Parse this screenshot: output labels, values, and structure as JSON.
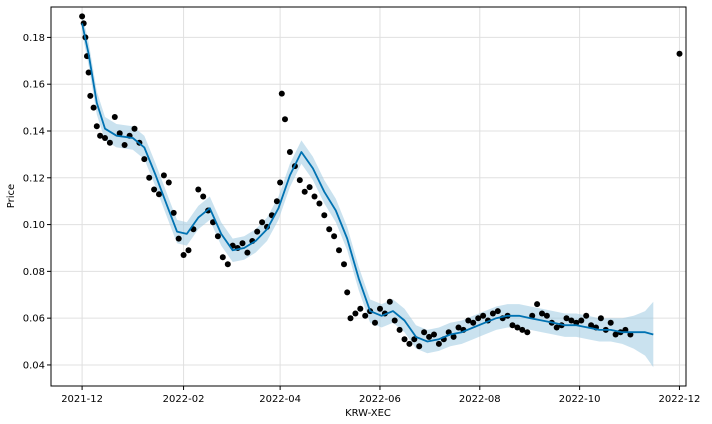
{
  "chart_data": {
    "type": "scatter",
    "title": "",
    "xlabel": "KRW-XEC",
    "ylabel": "Price",
    "xlim": [
      "2021-11-12",
      "2022-12-05"
    ],
    "ylim": [
      0.031,
      0.193
    ],
    "grid": true,
    "x_ticks": [
      "2021-12",
      "2022-02",
      "2022-04",
      "2022-06",
      "2022-08",
      "2022-10",
      "2022-12"
    ],
    "y_ticks": [
      "0.04",
      "0.06",
      "0.08",
      "0.10",
      "0.12",
      "0.14",
      "0.16",
      "0.18"
    ],
    "colors": {
      "points": "#000000",
      "forecast_line": "#0072B2",
      "band": "#9ecae1"
    },
    "series": [
      {
        "kind": "observed",
        "x": [
          "2021-12-01",
          "2021-12-02",
          "2021-12-03",
          "2021-12-04",
          "2021-12-05",
          "2021-12-06",
          "2021-12-08",
          "2021-12-10",
          "2021-12-12",
          "2021-12-15",
          "2021-12-18",
          "2021-12-21",
          "2021-12-24",
          "2021-12-27",
          "2021-12-30",
          "2022-01-02",
          "2022-01-05",
          "2022-01-08",
          "2022-01-11",
          "2022-01-14",
          "2022-01-17",
          "2022-01-20",
          "2022-01-23",
          "2022-01-26",
          "2022-01-29",
          "2022-02-01",
          "2022-02-04",
          "2022-02-07",
          "2022-02-10",
          "2022-02-13",
          "2022-02-16",
          "2022-02-19",
          "2022-02-22",
          "2022-02-25",
          "2022-02-28",
          "2022-03-03",
          "2022-03-06",
          "2022-03-09",
          "2022-03-12",
          "2022-03-15",
          "2022-03-18",
          "2022-03-21",
          "2022-03-24",
          "2022-03-27",
          "2022-03-30",
          "2022-04-01",
          "2022-04-02",
          "2022-04-04",
          "2022-04-07",
          "2022-04-10",
          "2022-04-13",
          "2022-04-16",
          "2022-04-19",
          "2022-04-22",
          "2022-04-25",
          "2022-04-28",
          "2022-05-01",
          "2022-05-04",
          "2022-05-07",
          "2022-05-10",
          "2022-05-12",
          "2022-05-14",
          "2022-05-17",
          "2022-05-20",
          "2022-05-23",
          "2022-05-26",
          "2022-05-29",
          "2022-06-01",
          "2022-06-04",
          "2022-06-07",
          "2022-06-10",
          "2022-06-13",
          "2022-06-16",
          "2022-06-19",
          "2022-06-22",
          "2022-06-25",
          "2022-06-28",
          "2022-07-01",
          "2022-07-04",
          "2022-07-07",
          "2022-07-10",
          "2022-07-13",
          "2022-07-16",
          "2022-07-19",
          "2022-07-22",
          "2022-07-25",
          "2022-07-28",
          "2022-07-31",
          "2022-08-03",
          "2022-08-06",
          "2022-08-09",
          "2022-08-12",
          "2022-08-15",
          "2022-08-18",
          "2022-08-21",
          "2022-08-24",
          "2022-08-27",
          "2022-08-30",
          "2022-09-02",
          "2022-09-05",
          "2022-09-08",
          "2022-09-11",
          "2022-09-14",
          "2022-09-17",
          "2022-09-20",
          "2022-09-23",
          "2022-09-26",
          "2022-09-29",
          "2022-10-02",
          "2022-10-05",
          "2022-10-08",
          "2022-10-11",
          "2022-10-14",
          "2022-10-17",
          "2022-10-20",
          "2022-10-23",
          "2022-10-26",
          "2022-10-29",
          "2022-11-01",
          "2022-12-01"
        ],
        "y": [
          0.189,
          0.186,
          0.18,
          0.172,
          0.165,
          0.155,
          0.15,
          0.142,
          0.138,
          0.137,
          0.135,
          0.146,
          0.139,
          0.134,
          0.138,
          0.141,
          0.135,
          0.128,
          0.12,
          0.115,
          0.113,
          0.121,
          0.118,
          0.105,
          0.094,
          0.087,
          0.089,
          0.098,
          0.115,
          0.112,
          0.106,
          0.101,
          0.095,
          0.086,
          0.083,
          0.091,
          0.09,
          0.092,
          0.088,
          0.093,
          0.097,
          0.101,
          0.099,
          0.104,
          0.11,
          0.118,
          0.156,
          0.145,
          0.131,
          0.125,
          0.119,
          0.114,
          0.116,
          0.112,
          0.109,
          0.104,
          0.098,
          0.095,
          0.089,
          0.083,
          0.071,
          0.06,
          0.062,
          0.064,
          0.061,
          0.063,
          0.058,
          0.064,
          0.062,
          0.067,
          0.059,
          0.055,
          0.051,
          0.049,
          0.051,
          0.048,
          0.054,
          0.052,
          0.053,
          0.049,
          0.051,
          0.054,
          0.052,
          0.056,
          0.055,
          0.059,
          0.058,
          0.06,
          0.061,
          0.059,
          0.062,
          0.063,
          0.06,
          0.061,
          0.057,
          0.056,
          0.055,
          0.054,
          0.061,
          0.066,
          0.062,
          0.061,
          0.058,
          0.056,
          0.057,
          0.06,
          0.059,
          0.058,
          0.059,
          0.061,
          0.057,
          0.056,
          0.06,
          0.055,
          0.058,
          0.053,
          0.054,
          0.055,
          0.053,
          0.173
        ]
      },
      {
        "kind": "forecast",
        "x": [
          "2021-12-01",
          "2021-12-05",
          "2021-12-10",
          "2021-12-15",
          "2021-12-22",
          "2022-01-01",
          "2022-01-08",
          "2022-01-15",
          "2022-01-22",
          "2022-01-28",
          "2022-02-03",
          "2022-02-10",
          "2022-02-17",
          "2022-02-24",
          "2022-03-03",
          "2022-03-10",
          "2022-03-17",
          "2022-03-24",
          "2022-03-31",
          "2022-04-07",
          "2022-04-14",
          "2022-04-21",
          "2022-04-28",
          "2022-05-05",
          "2022-05-12",
          "2022-05-19",
          "2022-05-26",
          "2022-06-02",
          "2022-06-09",
          "2022-06-16",
          "2022-06-23",
          "2022-06-30",
          "2022-07-07",
          "2022-07-14",
          "2022-07-21",
          "2022-07-28",
          "2022-08-04",
          "2022-08-11",
          "2022-08-18",
          "2022-08-25",
          "2022-09-01",
          "2022-09-08",
          "2022-09-15",
          "2022-09-22",
          "2022-09-29",
          "2022-10-06",
          "2022-10-13",
          "2022-10-20",
          "2022-10-27",
          "2022-11-03",
          "2022-11-10",
          "2022-11-15"
        ],
        "y": [
          0.186,
          0.173,
          0.152,
          0.141,
          0.138,
          0.137,
          0.133,
          0.121,
          0.108,
          0.097,
          0.096,
          0.103,
          0.107,
          0.096,
          0.089,
          0.09,
          0.093,
          0.098,
          0.107,
          0.121,
          0.131,
          0.124,
          0.114,
          0.106,
          0.094,
          0.077,
          0.063,
          0.061,
          0.063,
          0.059,
          0.052,
          0.05,
          0.051,
          0.053,
          0.054,
          0.056,
          0.058,
          0.06,
          0.061,
          0.061,
          0.06,
          0.059,
          0.058,
          0.057,
          0.057,
          0.056,
          0.055,
          0.055,
          0.054,
          0.054,
          0.054,
          0.053
        ],
        "upper": [
          0.19,
          0.178,
          0.157,
          0.146,
          0.143,
          0.142,
          0.138,
          0.126,
          0.113,
          0.102,
          0.101,
          0.108,
          0.112,
          0.101,
          0.094,
          0.095,
          0.098,
          0.103,
          0.112,
          0.126,
          0.136,
          0.129,
          0.119,
          0.111,
          0.099,
          0.082,
          0.068,
          0.066,
          0.068,
          0.064,
          0.057,
          0.055,
          0.056,
          0.058,
          0.059,
          0.061,
          0.063,
          0.065,
          0.066,
          0.066,
          0.065,
          0.064,
          0.063,
          0.062,
          0.062,
          0.061,
          0.06,
          0.06,
          0.06,
          0.061,
          0.063,
          0.067
        ],
        "lower": [
          0.182,
          0.168,
          0.147,
          0.136,
          0.133,
          0.132,
          0.128,
          0.116,
          0.103,
          0.092,
          0.091,
          0.098,
          0.102,
          0.091,
          0.084,
          0.085,
          0.088,
          0.093,
          0.102,
          0.116,
          0.126,
          0.119,
          0.109,
          0.101,
          0.089,
          0.072,
          0.058,
          0.056,
          0.058,
          0.054,
          0.047,
          0.045,
          0.046,
          0.048,
          0.049,
          0.051,
          0.053,
          0.055,
          0.056,
          0.056,
          0.055,
          0.054,
          0.053,
          0.052,
          0.052,
          0.051,
          0.05,
          0.05,
          0.049,
          0.047,
          0.044,
          0.039
        ]
      }
    ]
  }
}
